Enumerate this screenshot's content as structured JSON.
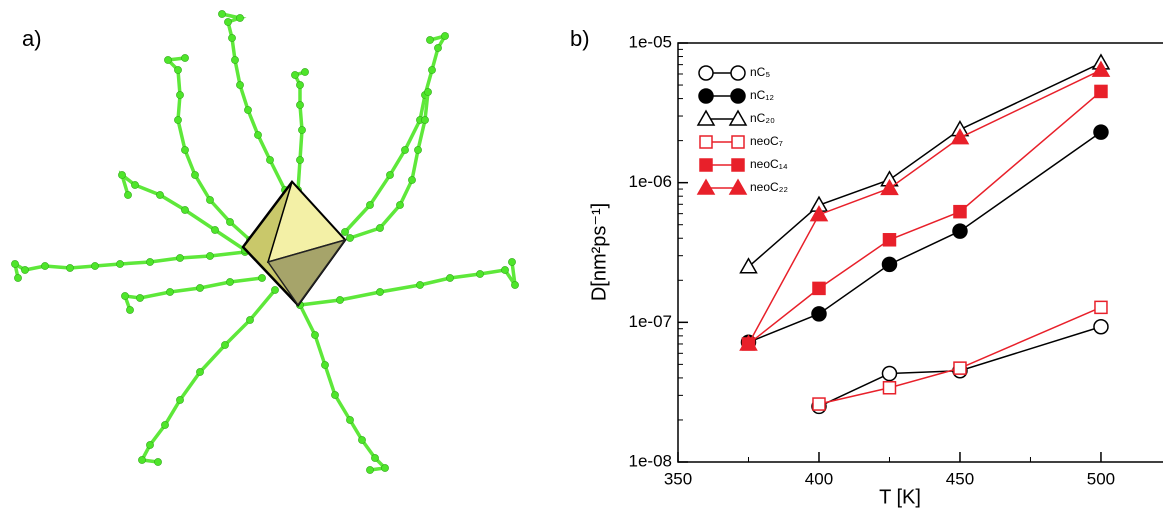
{
  "panels": {
    "a": "a)",
    "b": "b)"
  },
  "chart_data": {
    "type": "line",
    "x_label": "T [K]",
    "y_label": "D[nm²ps⁻¹]",
    "x": [
      375,
      400,
      425,
      450,
      500
    ],
    "xlim": [
      350,
      522
    ],
    "xticks": [
      350,
      400,
      450,
      500
    ],
    "ylim": [
      1e-08,
      1e-05
    ],
    "log_y": true,
    "yticks": [
      {
        "value": 1e-08,
        "label": "1e-08"
      },
      {
        "value": 1e-07,
        "label": "1e-07"
      },
      {
        "value": 1e-06,
        "label": "1e-06"
      },
      {
        "value": 1e-05,
        "label": "1e-05"
      }
    ],
    "legend": "upper left",
    "series": [
      {
        "name": "nC₅",
        "color": "#000000",
        "marker": "circle",
        "filled": false,
        "values": [
          null,
          2.5e-08,
          4.3e-08,
          4.5e-08,
          9.3e-08
        ]
      },
      {
        "name": "nC₁₂",
        "color": "#000000",
        "marker": "circle",
        "filled": true,
        "values": [
          7.2e-08,
          1.15e-07,
          2.6e-07,
          4.5e-07,
          2.3e-06
        ]
      },
      {
        "name": "nC₂₀",
        "color": "#000000",
        "marker": "triangle",
        "filled": false,
        "values": [
          2.5e-07,
          6.9e-07,
          1.05e-06,
          2.4e-06,
          7.2e-06
        ]
      },
      {
        "name": "neoC₇",
        "color": "#e8202a",
        "marker": "square",
        "filled": false,
        "values": [
          null,
          2.6e-08,
          3.4e-08,
          4.7e-08,
          1.28e-07
        ]
      },
      {
        "name": "neoC₁₄",
        "color": "#e8202a",
        "marker": "square",
        "filled": true,
        "values": [
          7e-08,
          1.75e-07,
          3.9e-07,
          6.2e-07,
          4.5e-06
        ]
      },
      {
        "name": "neoC₂₂",
        "color": "#e8202a",
        "marker": "triangle",
        "filled": true,
        "values": [
          7e-08,
          5.9e-07,
          9.1e-07,
          2.1e-06,
          6.4e-06
        ]
      }
    ]
  }
}
